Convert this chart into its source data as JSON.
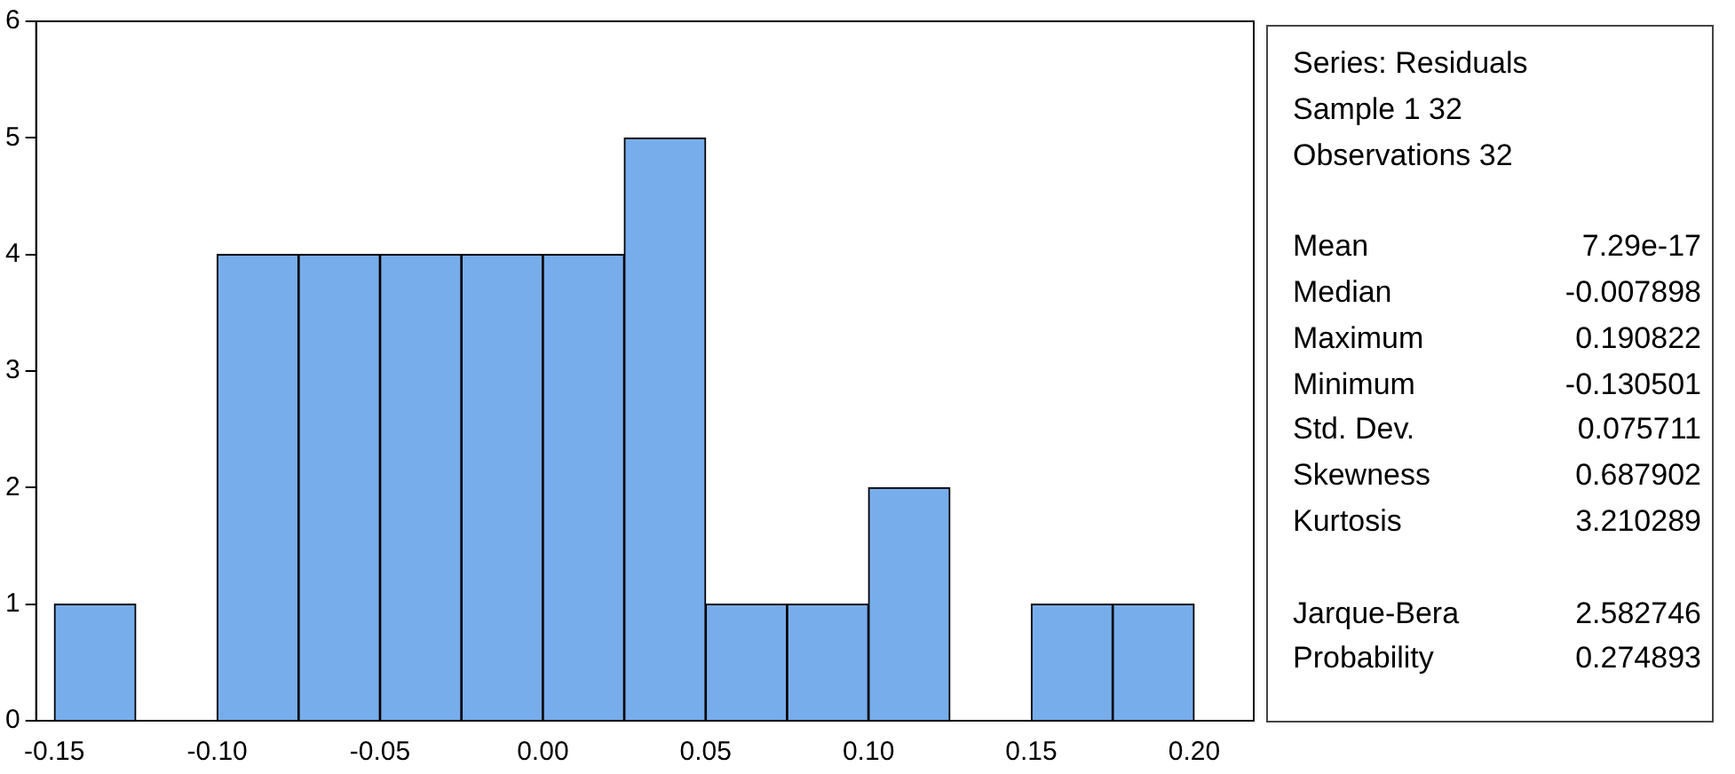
{
  "chart_data": {
    "type": "histogram",
    "bins": [
      -0.15,
      -0.125,
      -0.1,
      -0.075,
      -0.05,
      -0.025,
      0,
      0.025,
      0.05,
      0.075,
      0.1,
      0.125,
      0.15,
      0.175,
      0.2
    ],
    "values": [
      1,
      0,
      4,
      4,
      4,
      4,
      4,
      5,
      1,
      1,
      2,
      0,
      1,
      1
    ],
    "color": "#78adec",
    "xlim": [
      -0.1556,
      0.2183
    ],
    "xticks": [
      -0.15,
      {
        "value": -0.1,
        "label": "-0.10"
      },
      -0.05,
      {
        "value": 0,
        "label": "0.00"
      },
      0.05,
      {
        "value": 0.1,
        "label": "0.10"
      },
      0.15,
      {
        "value": 0.2,
        "label": "0.20"
      }
    ],
    "ylim": [
      0,
      6
    ],
    "yticks": [
      0,
      1,
      2,
      3,
      4,
      5,
      6
    ],
    "grid": false,
    "legend": false,
    "annotations": [
      "Series: Residuals",
      "Sample 1 32",
      "Observations 32",
      "Mean",
      "7.29e-17",
      "Median",
      "-0.007898",
      "Maximum",
      "0.190822",
      "Minimum",
      "-0.130501",
      "Std. Dev.",
      "0.075711",
      "Skewness",
      "0.687902",
      "Kurtosis",
      "3.210289",
      "Jarque-Bera",
      "2.582746",
      "Probability",
      "0.274893"
    ]
  }
}
